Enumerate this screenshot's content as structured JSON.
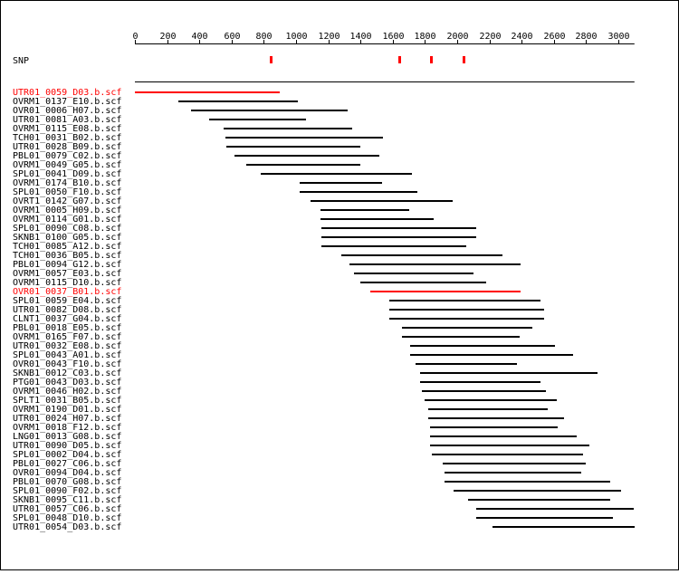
{
  "chart_data": {
    "type": "alignment",
    "axis": {
      "min": 0,
      "max": 3100,
      "ticks": [
        0,
        200,
        400,
        600,
        800,
        1000,
        1200,
        1400,
        1600,
        1800,
        2000,
        2200,
        2400,
        2600,
        2800,
        3000
      ]
    },
    "snp": {
      "label": "SNP",
      "positions": [
        840,
        1640,
        1835,
        2040
      ],
      "color": "#ff0000"
    },
    "reference_line": {
      "start": 0,
      "end": 3100
    },
    "colors": {
      "default": "#000000",
      "highlight": "#ff0000"
    },
    "reads": [
      {
        "name": "UTR01_0059_D03.b.scf",
        "start": 0,
        "end": 900,
        "highlight": true
      },
      {
        "name": "OVRM1_0137_E10.b.scf",
        "start": 270,
        "end": 1010,
        "highlight": false
      },
      {
        "name": "OVR01_0006_H07.b.scf",
        "start": 350,
        "end": 1320,
        "highlight": false
      },
      {
        "name": "UTR01_0081_A03.b.scf",
        "start": 460,
        "end": 1060,
        "highlight": false
      },
      {
        "name": "OVRM1_0115_E08.b.scf",
        "start": 550,
        "end": 1350,
        "highlight": false
      },
      {
        "name": "TCH01_0031_B02.b.scf",
        "start": 560,
        "end": 1540,
        "highlight": false
      },
      {
        "name": "UTR01_0028_B09.b.scf",
        "start": 570,
        "end": 1400,
        "highlight": false
      },
      {
        "name": "PBL01_0079_C02.b.scf",
        "start": 620,
        "end": 1520,
        "highlight": false
      },
      {
        "name": "OVRM1_0049_G05.b.scf",
        "start": 690,
        "end": 1400,
        "highlight": false
      },
      {
        "name": "SPL01_0041_D09.b.scf",
        "start": 780,
        "end": 1720,
        "highlight": false
      },
      {
        "name": "OVRM1_0174_B10.b.scf",
        "start": 1020,
        "end": 1530,
        "highlight": false
      },
      {
        "name": "SPL01_0050_F10.b.scf",
        "start": 1020,
        "end": 1750,
        "highlight": false
      },
      {
        "name": "OVRT1_0142_G07.b.scf",
        "start": 1090,
        "end": 1970,
        "highlight": false
      },
      {
        "name": "OVRM1_0005_H09.b.scf",
        "start": 1150,
        "end": 1700,
        "highlight": false
      },
      {
        "name": "OVRM1_0114_G01.b.scf",
        "start": 1150,
        "end": 1850,
        "highlight": false
      },
      {
        "name": "SPL01_0090_C08.b.scf",
        "start": 1160,
        "end": 2120,
        "highlight": false
      },
      {
        "name": "SKNB1_0100_G05.b.scf",
        "start": 1160,
        "end": 2120,
        "highlight": false
      },
      {
        "name": "TCH01_0085_A12.b.scf",
        "start": 1160,
        "end": 2060,
        "highlight": false
      },
      {
        "name": "TCH01_0036_B05.b.scf",
        "start": 1280,
        "end": 2280,
        "highlight": false
      },
      {
        "name": "PBL01_0094_G12.b.scf",
        "start": 1330,
        "end": 2390,
        "highlight": false
      },
      {
        "name": "OVRM1_0057_E03.b.scf",
        "start": 1360,
        "end": 2100,
        "highlight": false
      },
      {
        "name": "OVRM1_0115_D10.b.scf",
        "start": 1400,
        "end": 2180,
        "highlight": false
      },
      {
        "name": "OVR01_0037_B01.b.scf",
        "start": 1460,
        "end": 2390,
        "highlight": true
      },
      {
        "name": "SPL01_0059_E04.b.scf",
        "start": 1580,
        "end": 2520,
        "highlight": false
      },
      {
        "name": "UTR01_0082_D08.b.scf",
        "start": 1580,
        "end": 2540,
        "highlight": false
      },
      {
        "name": "CLNT1_0037_G04.b.scf",
        "start": 1580,
        "end": 2540,
        "highlight": false
      },
      {
        "name": "PBL01_0018_E05.b.scf",
        "start": 1660,
        "end": 2470,
        "highlight": false
      },
      {
        "name": "OVRM1_0165_F07.b.scf",
        "start": 1660,
        "end": 2390,
        "highlight": false
      },
      {
        "name": "UTR01_0032_E08.b.scf",
        "start": 1710,
        "end": 2610,
        "highlight": false
      },
      {
        "name": "SPL01_0043_A01.b.scf",
        "start": 1710,
        "end": 2720,
        "highlight": false
      },
      {
        "name": "OVR01_0043_F10.b.scf",
        "start": 1740,
        "end": 2370,
        "highlight": false
      },
      {
        "name": "SKNB1_0012_C03.b.scf",
        "start": 1770,
        "end": 2870,
        "highlight": false
      },
      {
        "name": "PTG01_0043_D03.b.scf",
        "start": 1770,
        "end": 2520,
        "highlight": false
      },
      {
        "name": "OVRM1_0046_H02.b.scf",
        "start": 1780,
        "end": 2550,
        "highlight": false
      },
      {
        "name": "SPLT1_0031_B05.b.scf",
        "start": 1800,
        "end": 2620,
        "highlight": false
      },
      {
        "name": "OVRM1_0190_D01.b.scf",
        "start": 1820,
        "end": 2560,
        "highlight": false
      },
      {
        "name": "UTR01_0024_H07.b.scf",
        "start": 1820,
        "end": 2660,
        "highlight": false
      },
      {
        "name": "OVRM1_0018_F12.b.scf",
        "start": 1830,
        "end": 2620,
        "highlight": false
      },
      {
        "name": "LNG01_0013_G08.b.scf",
        "start": 1830,
        "end": 2740,
        "highlight": false
      },
      {
        "name": "UTR01_0090_D05.b.scf",
        "start": 1830,
        "end": 2820,
        "highlight": false
      },
      {
        "name": "SPL01_0002_D04.b.scf",
        "start": 1840,
        "end": 2780,
        "highlight": false
      },
      {
        "name": "PBL01_0027_C06.b.scf",
        "start": 1910,
        "end": 2800,
        "highlight": false
      },
      {
        "name": "OVR01_0094_D04.b.scf",
        "start": 1920,
        "end": 2770,
        "highlight": false
      },
      {
        "name": "PBL01_0070_G08.b.scf",
        "start": 1920,
        "end": 2950,
        "highlight": false
      },
      {
        "name": "SPL01_0090_F02.b.scf",
        "start": 1980,
        "end": 3020,
        "highlight": false
      },
      {
        "name": "SKNB1_0095_C11.b.scf",
        "start": 2070,
        "end": 2950,
        "highlight": false
      },
      {
        "name": "UTR01_0057_C06.b.scf",
        "start": 2120,
        "end": 3100,
        "highlight": false
      },
      {
        "name": "SPL01_0048_D10.b.scf",
        "start": 2120,
        "end": 2970,
        "highlight": false
      },
      {
        "name": "UTR01_0054_D03.b.scf",
        "start": 2220,
        "end": 3100,
        "highlight": false
      }
    ]
  }
}
